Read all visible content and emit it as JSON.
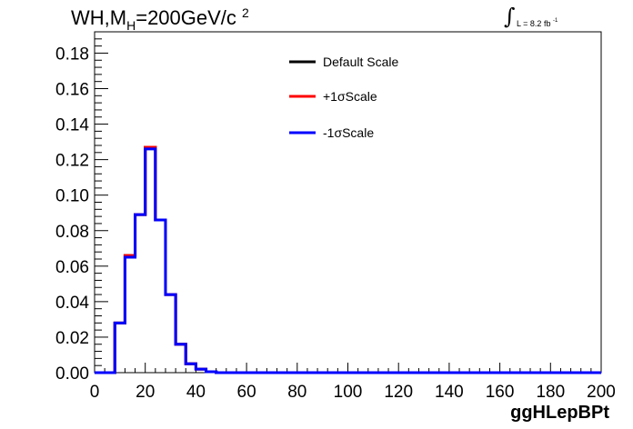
{
  "title": {
    "main": "WH,M",
    "sub": "H",
    "rest": "=200GeV/c",
    "sup": "2"
  },
  "lumi": {
    "integral": "∫",
    "text": "L = 8.2 fb",
    "sup": "-1"
  },
  "chart_data": {
    "type": "line",
    "xlabel": "ggHLepBPt",
    "ylabel": "",
    "xlim": [
      0,
      200
    ],
    "ylim": [
      0,
      0.192
    ],
    "xticks": [
      "0",
      "20",
      "40",
      "60",
      "80",
      "100",
      "120",
      "140",
      "160",
      "180",
      "200"
    ],
    "yticks": [
      "0.00",
      "0.02",
      "0.04",
      "0.06",
      "0.08",
      "0.10",
      "0.12",
      "0.14",
      "0.16",
      "0.18"
    ],
    "bin_edges": [
      0,
      4,
      8,
      12,
      16,
      20,
      24,
      28,
      32,
      36,
      40,
      44,
      48,
      52,
      56,
      60,
      64,
      68,
      72,
      76,
      80,
      84,
      88,
      92,
      96,
      100,
      104,
      108,
      112,
      116,
      120,
      124,
      128,
      132,
      136,
      140,
      144,
      148,
      152,
      156,
      160,
      164,
      168,
      172,
      176,
      180,
      184,
      188,
      192,
      196,
      200
    ],
    "series": [
      {
        "name": "Default Scale",
        "color": "#000000",
        "values": [
          0,
          0,
          0.028,
          0.066,
          0.089,
          0.127,
          0.086,
          0.044,
          0.016,
          0.005,
          0.002,
          0.0005,
          0,
          0,
          0,
          0,
          0,
          0,
          0,
          0,
          0,
          0,
          0,
          0,
          0,
          0,
          0,
          0,
          0,
          0,
          0,
          0,
          0,
          0,
          0,
          0,
          0,
          0,
          0,
          0,
          0,
          0,
          0,
          0,
          0,
          0,
          0,
          0,
          0,
          0
        ]
      },
      {
        "name": "+1σScale",
        "color": "#ff0000",
        "values": [
          0,
          0,
          0.028,
          0.066,
          0.089,
          0.127,
          0.086,
          0.044,
          0.016,
          0.005,
          0.002,
          0.0005,
          0,
          0,
          0,
          0,
          0,
          0,
          0,
          0,
          0,
          0,
          0,
          0,
          0,
          0,
          0,
          0,
          0,
          0,
          0,
          0,
          0,
          0,
          0,
          0,
          0,
          0,
          0,
          0,
          0,
          0,
          0,
          0,
          0,
          0,
          0,
          0,
          0,
          0
        ]
      },
      {
        "name": "-1σScale",
        "color": "#0000ff",
        "values": [
          0,
          0,
          0.028,
          0.065,
          0.089,
          0.126,
          0.086,
          0.044,
          0.016,
          0.005,
          0.002,
          0.0005,
          0,
          0,
          0,
          0,
          0,
          0,
          0,
          0,
          0,
          0,
          0,
          0,
          0,
          0,
          0,
          0,
          0,
          0,
          0,
          0,
          0,
          0,
          0,
          0,
          0,
          0,
          0,
          0,
          0,
          0,
          0,
          0,
          0,
          0,
          0,
          0,
          0,
          0
        ]
      }
    ]
  }
}
